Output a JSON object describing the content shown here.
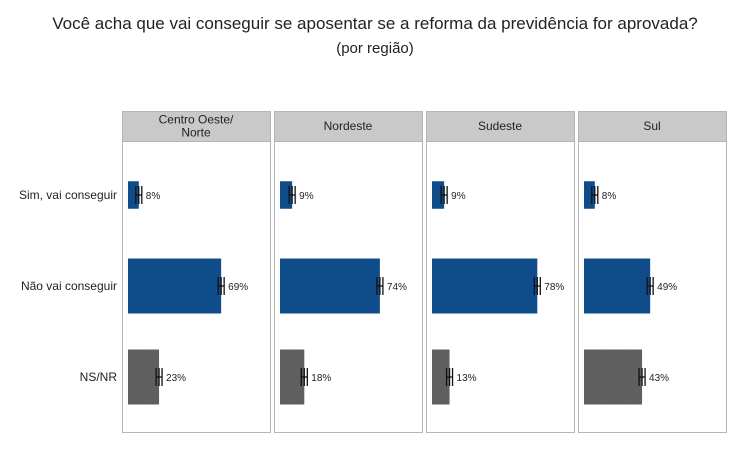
{
  "title": "Você acha que vai conseguir se aposentar se a reforma da previdência for aprovada?",
  "subtitle": "(por região)",
  "colors": {
    "blue": "#0f4c8a",
    "gray": "#5b5b5b",
    "header_bg": "#c9c9c9",
    "border": "#b5b5b5"
  },
  "chart_data": {
    "type": "bar",
    "orientation": "horizontal",
    "panels": [
      "Centro Oeste/\nNorte",
      "Nordeste",
      "Sudeste",
      "Sul"
    ],
    "categories": [
      "Sim, vai conseguir",
      "Não vai conseguir",
      "NS/NR"
    ],
    "series": [
      {
        "panel": "Centro Oeste/\nNorte",
        "values": [
          8,
          69,
          23
        ]
      },
      {
        "panel": "Nordeste",
        "values": [
          9,
          74,
          18
        ]
      },
      {
        "panel": "Sudeste",
        "values": [
          9,
          78,
          13
        ]
      },
      {
        "panel": "Sul",
        "values": [
          8,
          49,
          43
        ]
      }
    ],
    "category_colors": [
      "#0f4c8a",
      "#0f4c8a",
      "#5b5b5b"
    ],
    "value_suffix": "%",
    "xlim": [
      0,
      100
    ],
    "error_bars": true
  }
}
